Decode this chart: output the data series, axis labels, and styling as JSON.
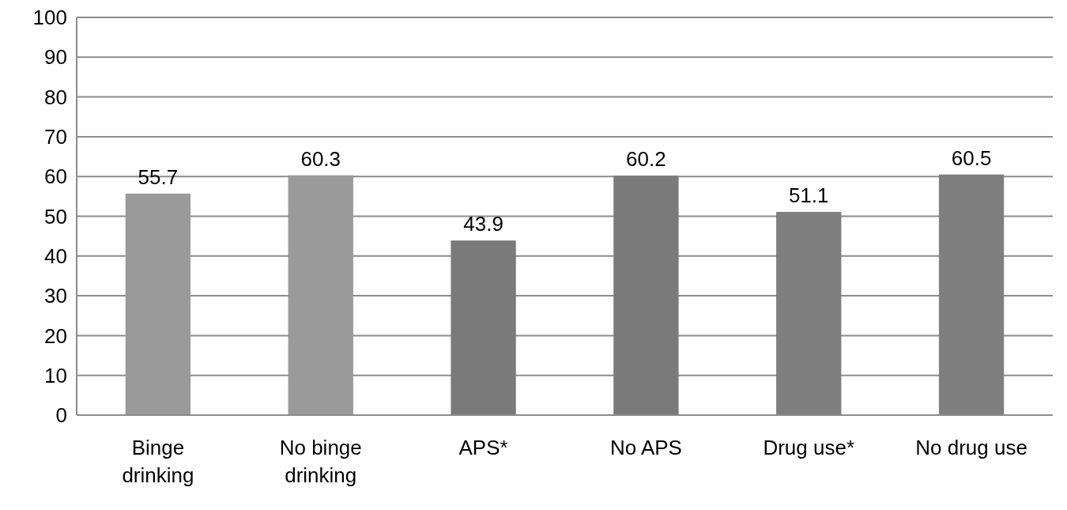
{
  "chart_data": {
    "type": "bar",
    "categories": [
      "Binge drinking",
      "No binge drinking",
      "APS*",
      "No APS",
      "Drug use*",
      "No drug use"
    ],
    "values": [
      55.7,
      60.3,
      43.9,
      60.2,
      51.1,
      60.5
    ],
    "colors": [
      "#9a9a9a",
      "#9a9a9a",
      "#7a7a7a",
      "#7a7a7a",
      "#7f7f7f",
      "#7f7f7f"
    ],
    "ylim": [
      0,
      100
    ],
    "yticks": [
      0,
      10,
      20,
      30,
      40,
      50,
      60,
      70,
      80,
      90,
      100
    ],
    "grid": "y",
    "data_labels": true
  }
}
